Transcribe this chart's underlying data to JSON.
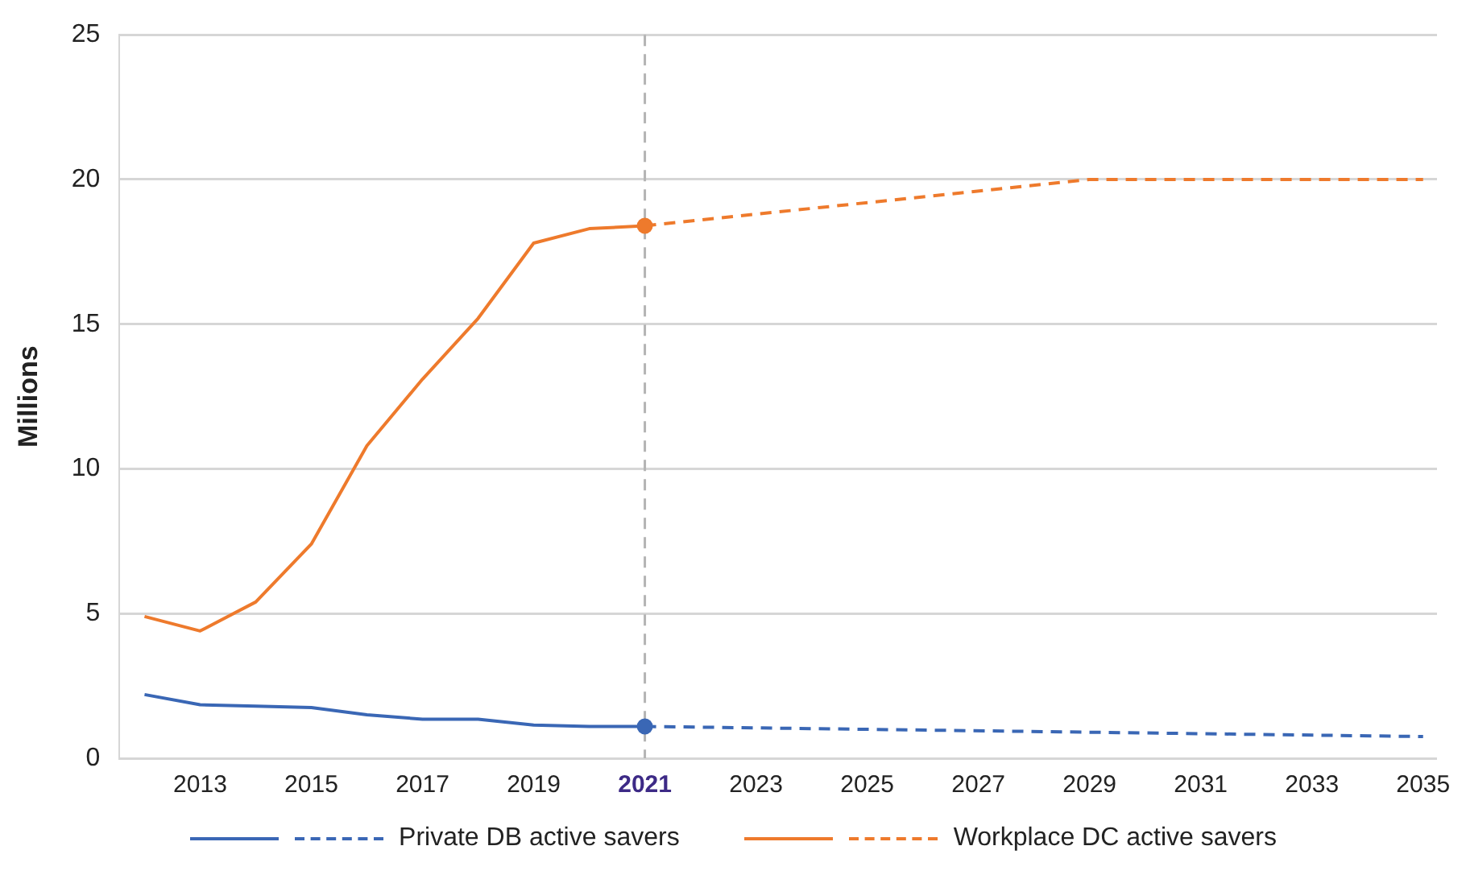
{
  "chart_data": {
    "type": "line",
    "ylabel": "Millions",
    "xlim": [
      2011.55,
      2035.25
    ],
    "xticks": [
      2013,
      2015,
      2017,
      2019,
      2021,
      2023,
      2025,
      2027,
      2029,
      2031,
      2033,
      2035
    ],
    "ylim": [
      0,
      25
    ],
    "yticks": [
      0,
      5,
      10,
      15,
      20,
      25
    ],
    "grid": "y",
    "legend": "bottom",
    "marker": "none",
    "ref_lines": [
      {
        "axis": "x",
        "value": 2021,
        "color": "#b4b4b4",
        "line_style": "dashed"
      }
    ],
    "series": [
      {
        "name": "Private DB active savers",
        "color": "#3a67b5",
        "line_style": "solid",
        "x": [
          2012,
          2013,
          2014,
          2015,
          2016,
          2017,
          2018,
          2019,
          2020,
          2021
        ],
        "values": [
          2.2,
          1.85,
          1.8,
          1.75,
          1.5,
          1.35,
          1.35,
          1.15,
          1.1,
          1.1
        ]
      },
      {
        "color": "#3a67b5",
        "line_style": "dashed",
        "x": [
          2021,
          2035
        ],
        "values": [
          1.1,
          0.75
        ]
      },
      {
        "name": "Workplace DC active savers",
        "color": "#ee7a2c",
        "line_style": "solid",
        "x": [
          2012,
          2013,
          2014,
          2015,
          2016,
          2017,
          2018,
          2019,
          2020,
          2021
        ],
        "values": [
          4.9,
          4.4,
          5.4,
          7.4,
          10.8,
          13.1,
          15.2,
          17.8,
          18.3,
          18.4
        ]
      },
      {
        "color": "#ee7a2c",
        "line_style": "dashed",
        "x": [
          2021,
          2029,
          2035
        ],
        "values": [
          18.4,
          20.0,
          20.0
        ]
      },
      {
        "type": "scatter",
        "marker": "circle",
        "color": "#3a67b5",
        "x": [
          2021
        ],
        "values": [
          1.1
        ]
      },
      {
        "type": "scatter",
        "marker": "circle",
        "color": "#ee7a2c",
        "x": [
          2021
        ],
        "values": [
          18.4
        ]
      }
    ]
  }
}
